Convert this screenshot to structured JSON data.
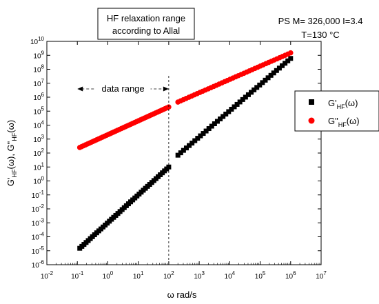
{
  "chart_data": {
    "type": "scatter",
    "xscale": "log",
    "yscale": "log",
    "xlim": [
      0.01,
      10000000
    ],
    "ylim": [
      1e-06,
      10000000000
    ],
    "x_ticks": [
      {
        "value": 0.01,
        "base": "10",
        "exp": "-2"
      },
      {
        "value": 0.1,
        "base": "10",
        "exp": "-1"
      },
      {
        "value": 1,
        "base": "10",
        "exp": "0"
      },
      {
        "value": 10,
        "base": "10",
        "exp": "1"
      },
      {
        "value": 100,
        "base": "10",
        "exp": "2"
      },
      {
        "value": 1000,
        "base": "10",
        "exp": "3"
      },
      {
        "value": 10000,
        "base": "10",
        "exp": "4"
      },
      {
        "value": 100000,
        "base": "10",
        "exp": "5"
      },
      {
        "value": 1000000,
        "base": "10",
        "exp": "6"
      },
      {
        "value": 10000000,
        "base": "10",
        "exp": "7"
      }
    ],
    "y_ticks": [
      {
        "value": 1e-06,
        "base": "10",
        "exp": "-6"
      },
      {
        "value": 1e-05,
        "base": "10",
        "exp": "-5"
      },
      {
        "value": 0.0001,
        "base": "10",
        "exp": "-4"
      },
      {
        "value": 0.001,
        "base": "10",
        "exp": "-3"
      },
      {
        "value": 0.01,
        "base": "10",
        "exp": "-2"
      },
      {
        "value": 0.1,
        "base": "10",
        "exp": "-1"
      },
      {
        "value": 1,
        "base": "10",
        "exp": "0"
      },
      {
        "value": 10,
        "base": "10",
        "exp": "1"
      },
      {
        "value": 100,
        "base": "10",
        "exp": "2"
      },
      {
        "value": 1000,
        "base": "10",
        "exp": "3"
      },
      {
        "value": 10000,
        "base": "10",
        "exp": "4"
      },
      {
        "value": 100000,
        "base": "10",
        "exp": "5"
      },
      {
        "value": 1000000,
        "base": "10",
        "exp": "6"
      },
      {
        "value": 10000000,
        "base": "10",
        "exp": "7"
      },
      {
        "value": 100000000,
        "base": "10",
        "exp": "8"
      },
      {
        "value": 1000000000,
        "base": "10",
        "exp": "9"
      },
      {
        "value": 10000000000,
        "base": "10",
        "exp": "10"
      }
    ],
    "xlabel": {
      "omega": "ω",
      "rest": " rad/s"
    },
    "ylabel": {
      "part1": "G'",
      "sub1": "HF",
      "part2": "(ω), G\"",
      "sub2": "HF",
      "part3": "(ω)"
    },
    "series": [
      {
        "name": "G'HF(ω)",
        "legend": {
          "main": "G'",
          "sub": "HF",
          "tail": "(ω)"
        },
        "color": "#000000",
        "marker": "square",
        "segments": [
          {
            "x_range": [
              0.12,
              100
            ],
            "y_range": [
              1.5e-05,
              10
            ],
            "count": 43
          },
          {
            "x_range": [
              200,
              1000000
            ],
            "y_range": [
              70,
              600000000
            ],
            "count": 41
          }
        ]
      },
      {
        "name": "G\"HF(ω)",
        "legend": {
          "main": "G\"",
          "sub": "HF",
          "tail": "(ω)"
        },
        "color": "#ff0000",
        "marker": "circle",
        "segments": [
          {
            "x_range": [
              0.12,
              100
            ],
            "y_range": [
              250,
              200000
            ],
            "count": 48
          },
          {
            "x_range": [
              200,
              1000000
            ],
            "y_range": [
              450000,
              1500000000
            ],
            "count": 42
          }
        ]
      }
    ],
    "annotations": {
      "title_box": [
        "HF relaxation range",
        "according to Allal"
      ],
      "sample_info": [
        "PS M= 326,000 I=3.4",
        "T=130 °C"
      ],
      "data_range_label": "data range",
      "data_range_line_x": 100,
      "data_range_arrow_from_x": 0.1
    },
    "grid": false,
    "legend_position": "right"
  }
}
